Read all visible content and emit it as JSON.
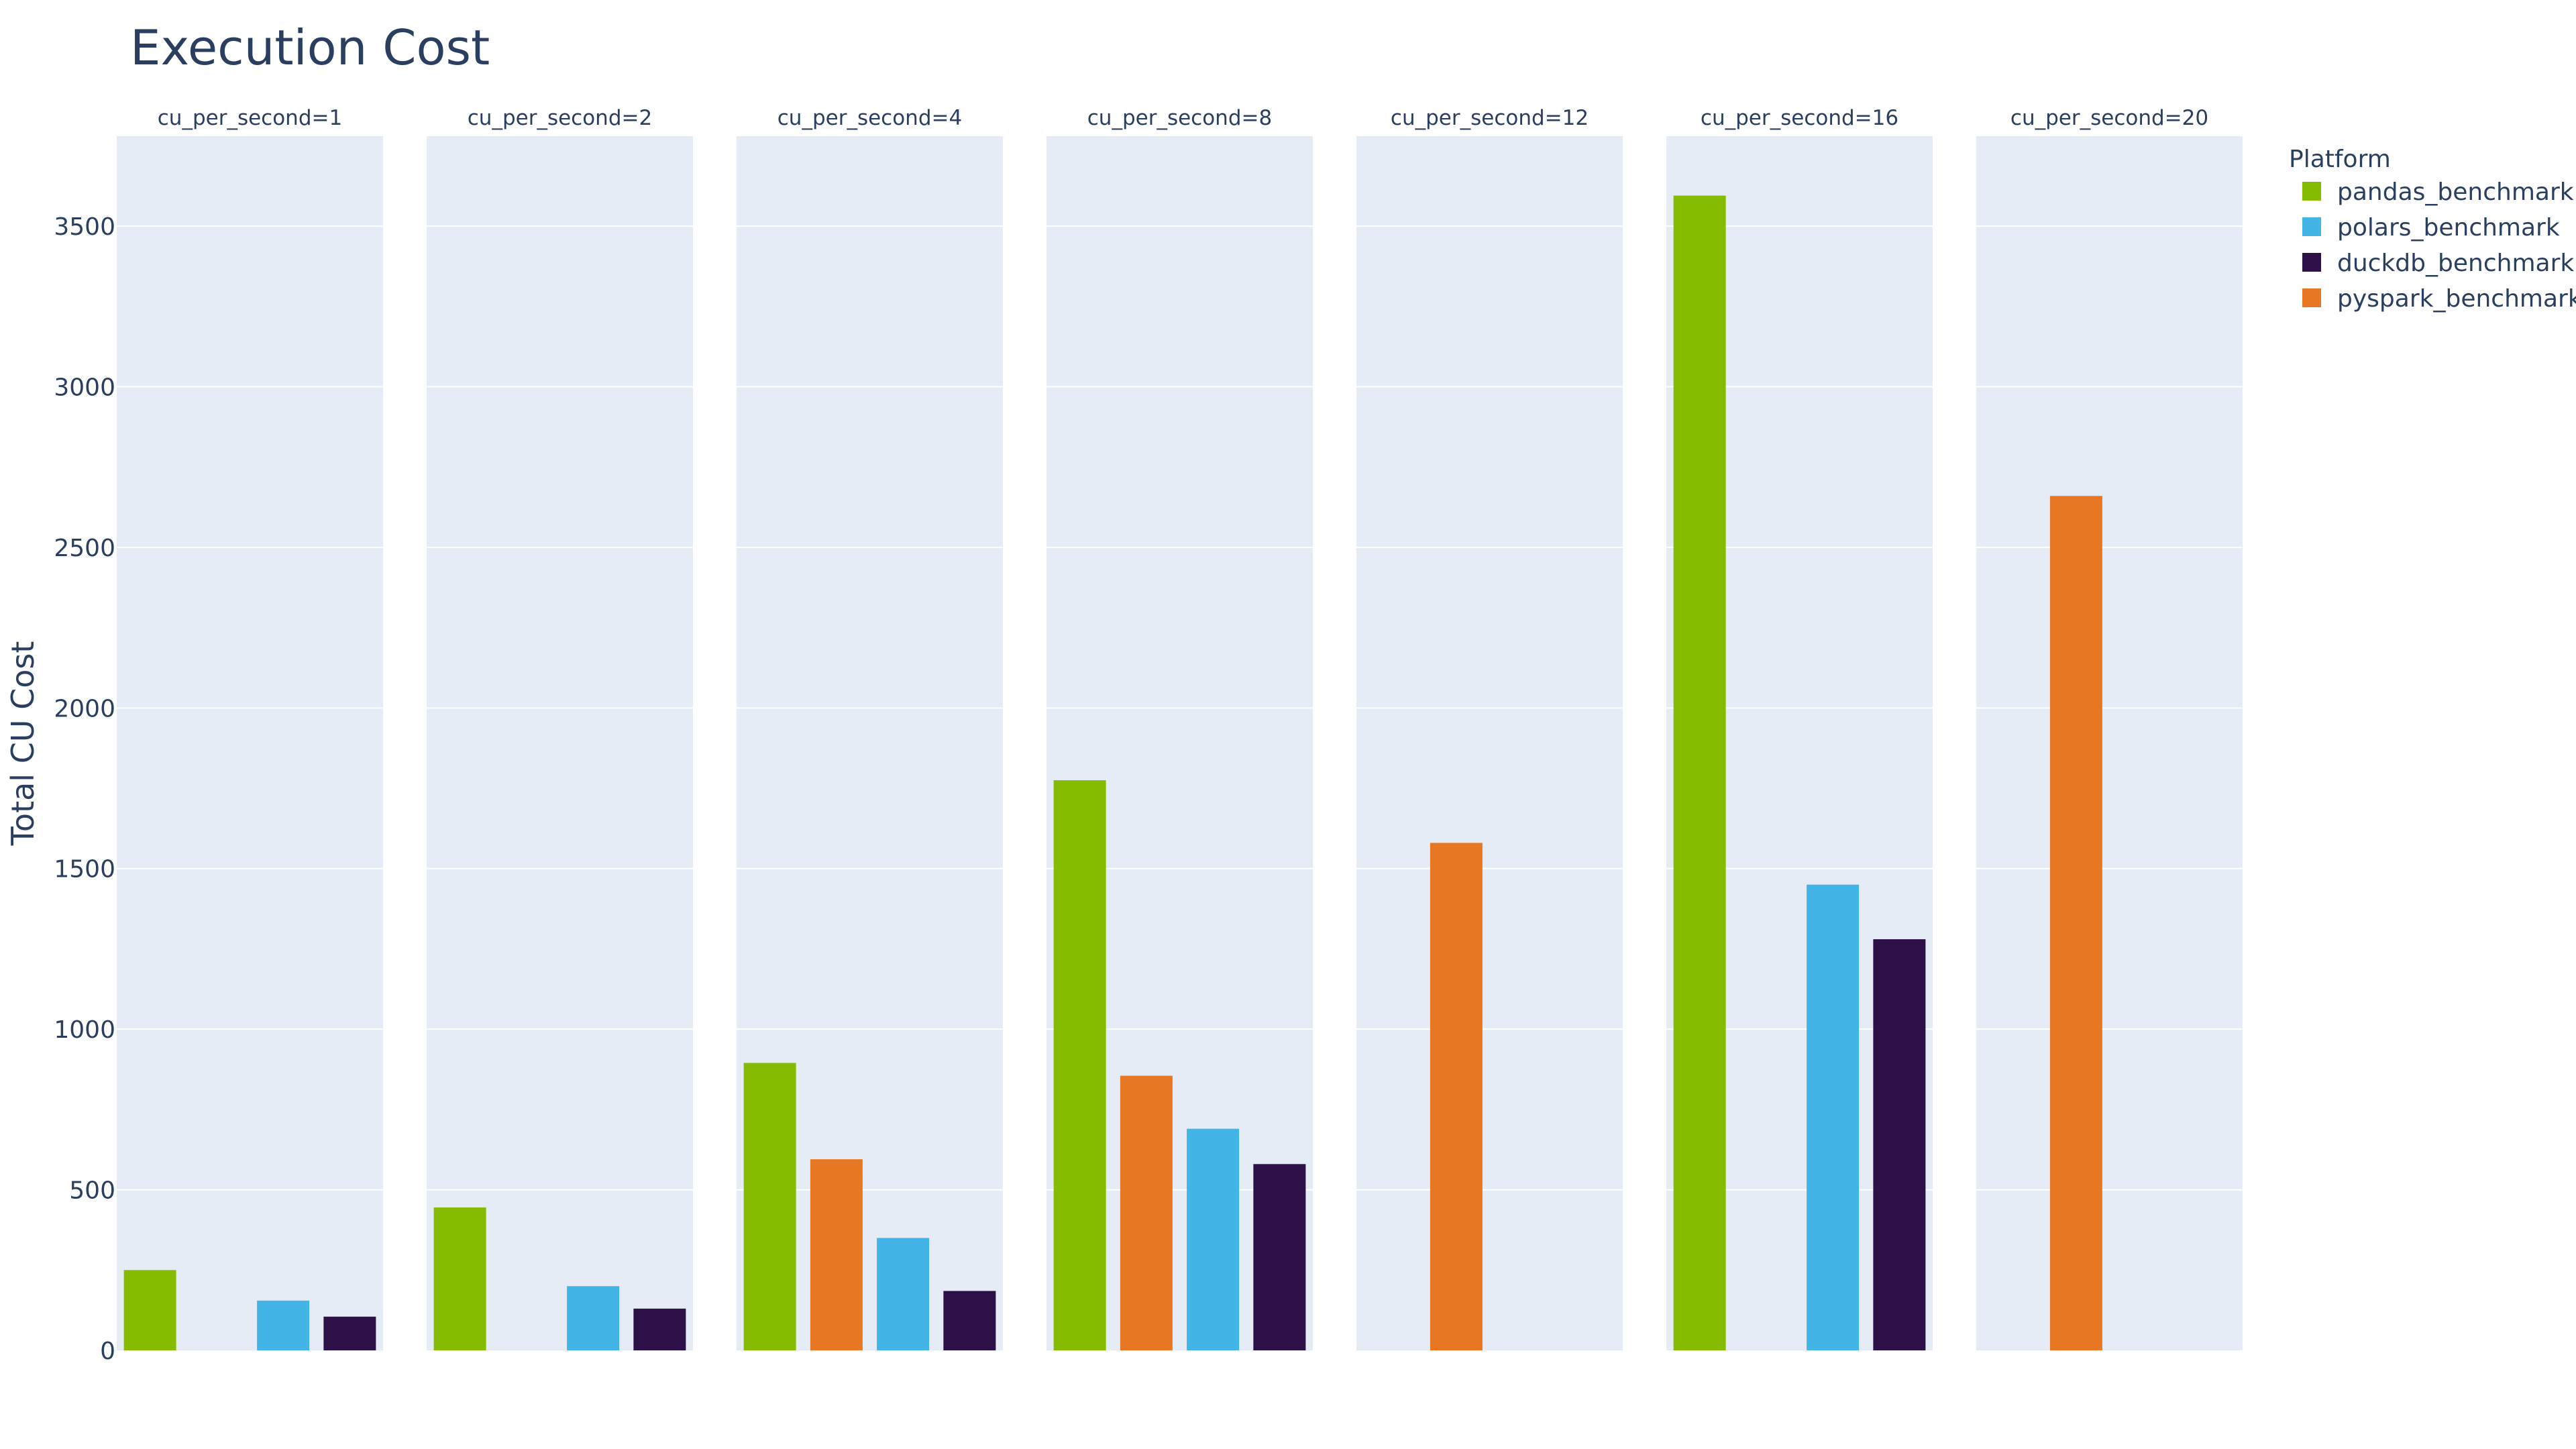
{
  "chart_data": {
    "type": "bar",
    "title": "Execution Cost",
    "ylabel": "Total CU Cost",
    "xlabel": "",
    "ylim": [
      0,
      3780
    ],
    "yticks": [
      0,
      500,
      1000,
      1500,
      2000,
      2500,
      3000,
      3500
    ],
    "grid": true,
    "legend_title": "Platform",
    "legend_position": "top-right",
    "series": [
      {
        "name": "pandas_benchmark",
        "color": "#86bc00"
      },
      {
        "name": "pyspark_benchmark",
        "color": "#e77722"
      },
      {
        "name": "polars_benchmark",
        "color": "#42b4e6"
      },
      {
        "name": "duckdb_benchmark",
        "color": "#2e1048"
      }
    ],
    "legend_order": [
      "pandas_benchmark",
      "polars_benchmark",
      "duckdb_benchmark",
      "pyspark_benchmark"
    ],
    "facets": [
      {
        "label": "cu_per_second=1",
        "values": {
          "pandas_benchmark": 250,
          "pyspark_benchmark": null,
          "polars_benchmark": 155,
          "duckdb_benchmark": 105
        }
      },
      {
        "label": "cu_per_second=2",
        "values": {
          "pandas_benchmark": 445,
          "pyspark_benchmark": null,
          "polars_benchmark": 200,
          "duckdb_benchmark": 130
        }
      },
      {
        "label": "cu_per_second=4",
        "values": {
          "pandas_benchmark": 895,
          "pyspark_benchmark": 595,
          "polars_benchmark": 350,
          "duckdb_benchmark": 185
        }
      },
      {
        "label": "cu_per_second=8",
        "values": {
          "pandas_benchmark": 1775,
          "pyspark_benchmark": 855,
          "polars_benchmark": 690,
          "duckdb_benchmark": 580
        }
      },
      {
        "label": "cu_per_second=12",
        "values": {
          "pandas_benchmark": null,
          "pyspark_benchmark": 1580,
          "polars_benchmark": null,
          "duckdb_benchmark": null
        }
      },
      {
        "label": "cu_per_second=16",
        "values": {
          "pandas_benchmark": 3595,
          "pyspark_benchmark": null,
          "polars_benchmark": 1450,
          "duckdb_benchmark": 1280
        }
      },
      {
        "label": "cu_per_second=20",
        "values": {
          "pandas_benchmark": null,
          "pyspark_benchmark": 2660,
          "polars_benchmark": null,
          "duckdb_benchmark": null
        }
      }
    ]
  }
}
